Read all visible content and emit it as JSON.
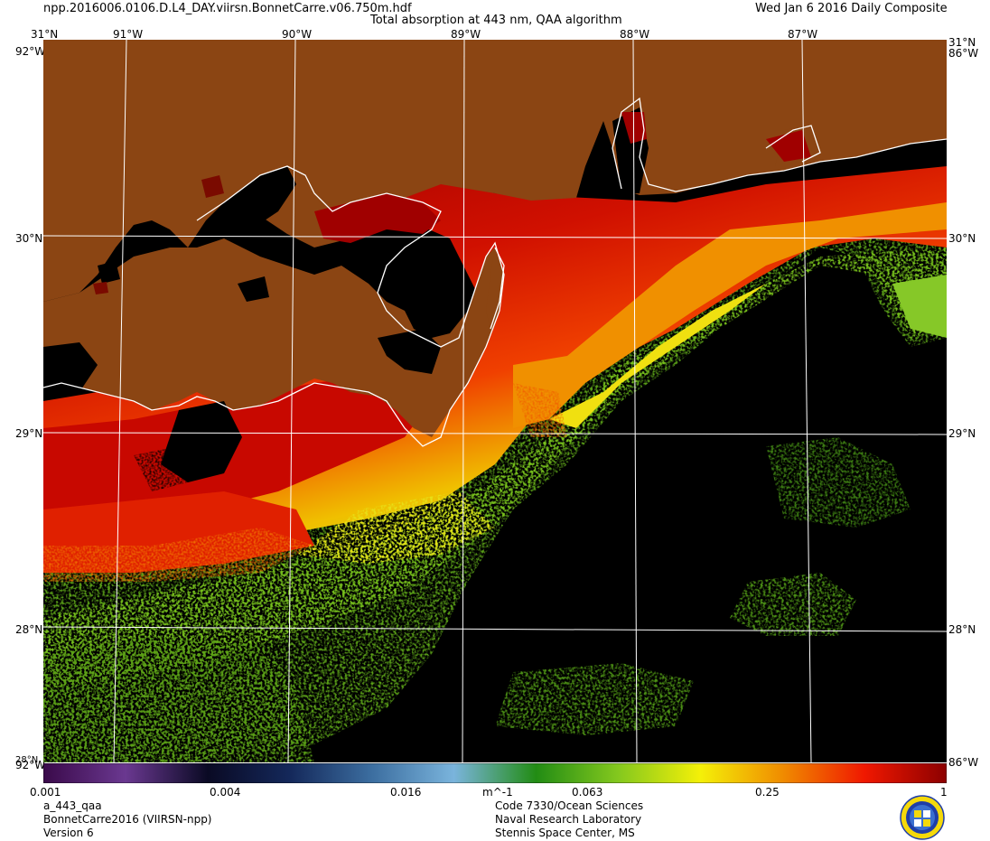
{
  "header": {
    "filename": "npp.2016006.0106.D.L4_DAY.viirsn.BonnetCarre.v06.750m.hdf",
    "product_title": "Total absorption at 443 nm, QAA algorithm",
    "date": "Wed Jan  6 2016 Daily Composite"
  },
  "map": {
    "longitude_labels": [
      "91°W",
      "90°W",
      "89°W",
      "88°W",
      "87°W"
    ],
    "latitude_labels": [
      "30°N",
      "29°N",
      "28°N"
    ],
    "corner_labels": {
      "top_left_lat": "31°N",
      "top_right_lat": "31°N",
      "top_left_lon": "92°W",
      "top_right_lon": "86°W",
      "bottom_left_lat": "28°N",
      "bottom_left_lon": "92°W",
      "bottom_right_lon": "86°W"
    },
    "colors": {
      "land": "#8b4513",
      "no_data": "#000000",
      "coastline": "#ffffff",
      "graticule": "#ffffff"
    }
  },
  "colorbar": {
    "ticks": [
      "0.001",
      "0.004",
      "0.016",
      "0.063",
      "0.25",
      "1"
    ],
    "unit": "m^-1",
    "scale": "log",
    "range": [
      0.001,
      1
    ],
    "colors": [
      "#3a0a4a",
      "#6a3890",
      "#0a0a24",
      "#14285a",
      "#3c6ea0",
      "#7ab4dc",
      "#228c14",
      "#84c81e",
      "#f4f008",
      "#f08c00",
      "#f01800",
      "#8c0000"
    ]
  },
  "footer": {
    "left": [
      "a_443_qaa",
      "BonnetCarre2016 (VIIRSN-npp)",
      "Version 6"
    ],
    "center": [
      "Code 7330/Ocean Sciences",
      "Naval Research Laboratory",
      "Stennis Space Center, MS"
    ]
  }
}
